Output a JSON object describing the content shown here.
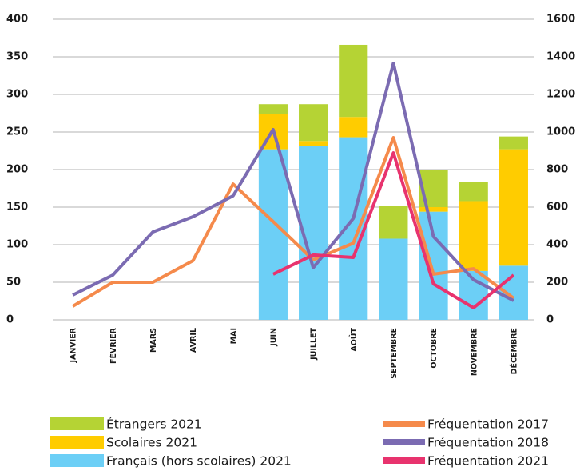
{
  "chart_data": {
    "type": "bar",
    "stacked": true,
    "categories": [
      "JANVIER",
      "FÉVRIER",
      "MARS",
      "AVRIL",
      "MAI",
      "JUIN",
      "JUILLET",
      "AOÛT",
      "SEPTEMBRE",
      "OCTOBRE",
      "NOVEMBRE",
      "DÉCEMBRE"
    ],
    "series": [
      {
        "name": "Français (hors scolaires) 2021",
        "color": "#6ccff6",
        "type": "bar",
        "values": [
          null,
          null,
          null,
          null,
          null,
          227,
          231,
          243,
          108,
          144,
          65,
          72
        ]
      },
      {
        "name": "Scolaires 2021",
        "color": "#ffcc00",
        "type": "bar",
        "values": [
          null,
          null,
          null,
          null,
          null,
          47,
          7,
          27,
          0,
          6,
          93,
          155
        ]
      },
      {
        "name": "Étrangers 2021",
        "color": "#b5d334",
        "type": "bar",
        "values": [
          null,
          null,
          null,
          null,
          null,
          13,
          49,
          96,
          44,
          50,
          25,
          17
        ]
      },
      {
        "name": "Fréquentation 2017",
        "color": "#f58a4b",
        "type": "line",
        "axis": "y2",
        "values": [
          72,
          200,
          200,
          315,
          723,
          523,
          319,
          408,
          970,
          243,
          272,
          115
        ]
      },
      {
        "name": "Fréquentation 2018",
        "color": "#7b6bb2",
        "type": "line",
        "axis": "y2",
        "values": [
          132,
          238,
          468,
          549,
          660,
          1013,
          277,
          540,
          1366,
          443,
          213,
          102
        ]
      },
      {
        "name": "Fréquentation 2021",
        "color": "#e8336e",
        "type": "line",
        "axis": "y2",
        "values": [
          null,
          null,
          null,
          null,
          null,
          243,
          345,
          332,
          889,
          191,
          64,
          238
        ]
      }
    ],
    "ylim": [
      0,
      400
    ],
    "yticks": [
      0,
      50,
      100,
      150,
      200,
      250,
      300,
      350,
      400
    ],
    "y2lim": [
      0,
      1600
    ],
    "y2ticks": [
      0,
      200,
      400,
      600,
      800,
      1000,
      1200,
      1400,
      1600
    ],
    "grid": true
  }
}
